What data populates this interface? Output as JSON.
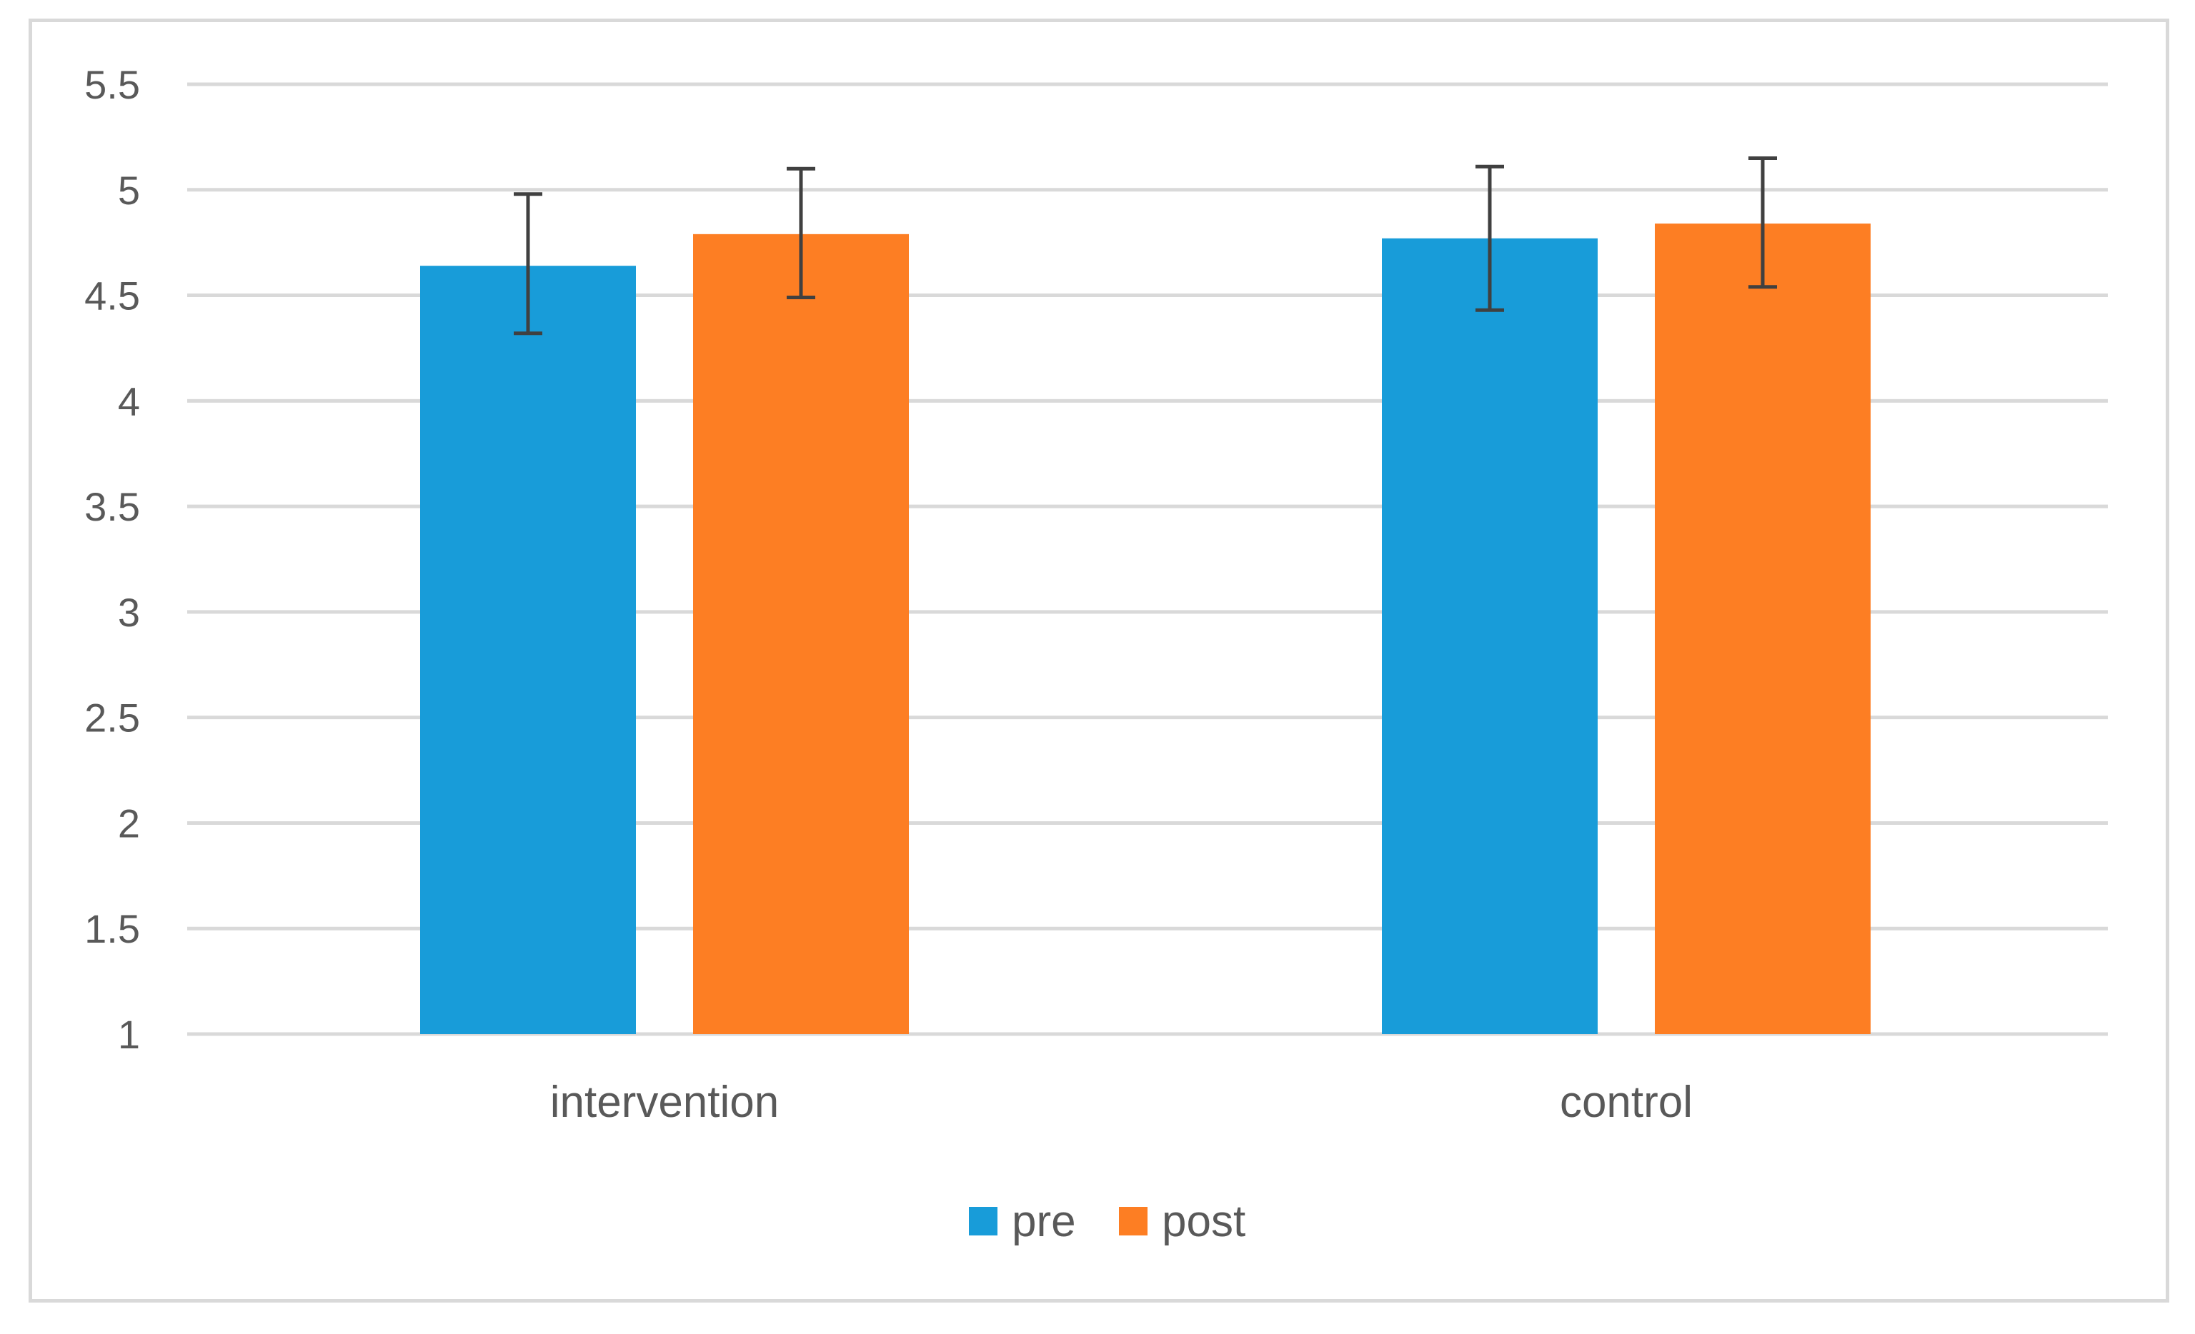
{
  "chart_data": {
    "type": "bar",
    "categories": [
      "intervention",
      "control"
    ],
    "series": [
      {
        "name": "pre",
        "color": "#189cd9",
        "values": [
          4.64,
          4.77
        ],
        "error_low": [
          4.32,
          4.43
        ],
        "error_high": [
          4.98,
          5.11
        ]
      },
      {
        "name": "post",
        "color": "#fd7e23",
        "values": [
          4.79,
          4.84
        ],
        "error_low": [
          4.49,
          4.54
        ],
        "error_high": [
          5.1,
          5.15
        ]
      }
    ],
    "yticks": [
      "1",
      "1.5",
      "2",
      "2.5",
      "3",
      "3.5",
      "4",
      "4.5",
      "5",
      "5.5"
    ],
    "ylim": [
      1,
      5.5
    ],
    "grid": true,
    "legend": "bottom"
  }
}
